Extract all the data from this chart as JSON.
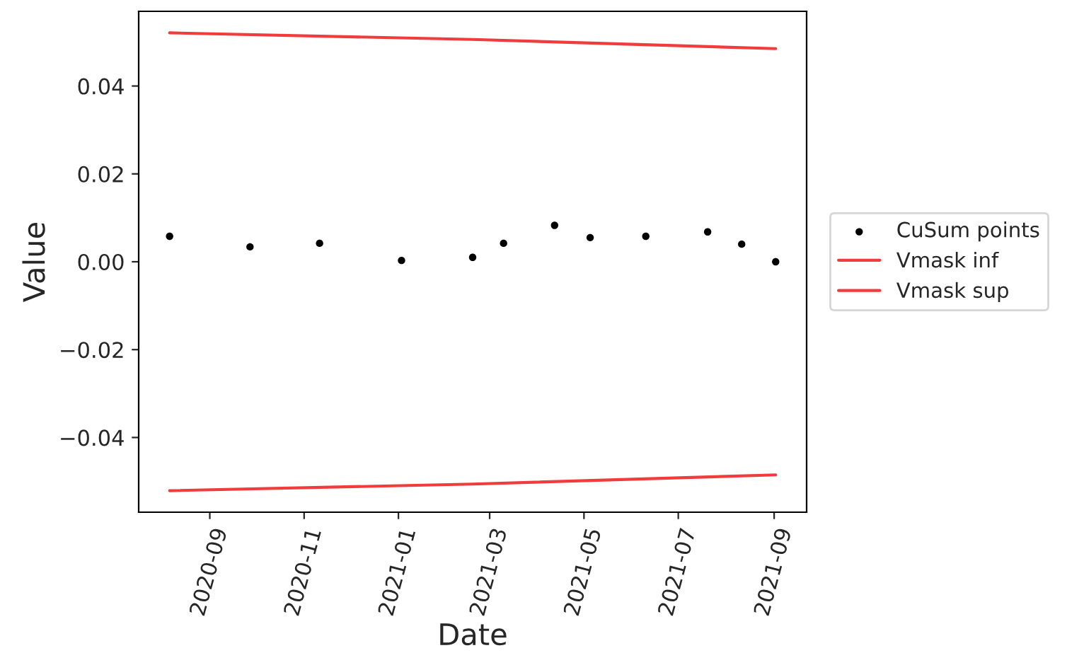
{
  "chart_data": {
    "type": "scatter",
    "xlabel": "Date",
    "ylabel": "Value",
    "xlim": [
      "2020-07-17",
      "2021-09-22"
    ],
    "xticks": [
      {
        "value": "2020-09-01",
        "label": "2020-09"
      },
      {
        "value": "2020-11-01",
        "label": "2020-11"
      },
      {
        "value": "2021-01-01",
        "label": "2021-01"
      },
      {
        "value": "2021-03-01",
        "label": "2021-03"
      },
      {
        "value": "2021-05-01",
        "label": "2021-05"
      },
      {
        "value": "2021-07-01",
        "label": "2021-07"
      },
      {
        "value": "2021-09-01",
        "label": "2021-09"
      }
    ],
    "ylim": [
      -0.057,
      0.057
    ],
    "yticks": [
      {
        "value": -0.04,
        "label": "−0.04"
      },
      {
        "value": -0.02,
        "label": "−0.02"
      },
      {
        "value": 0,
        "label": "0.00"
      },
      {
        "value": 0.02,
        "label": "0.02"
      },
      {
        "value": 0.04,
        "label": "0.04"
      }
    ],
    "legend": "right",
    "grid": false,
    "series": [
      {
        "name": "CuSum points",
        "marker": "circle",
        "color": "#000000",
        "x": [
          "2020-08-06",
          "2020-09-27",
          "2020-11-11",
          "2021-01-03",
          "2021-02-18",
          "2021-03-10",
          "2021-04-12",
          "2021-05-05",
          "2021-06-10",
          "2021-07-20",
          "2021-08-11",
          "2021-09-02"
        ],
        "values": [
          0.0058,
          0.0034,
          0.0042,
          0.0003,
          0.001,
          0.0042,
          0.0083,
          0.0055,
          0.0058,
          0.0068,
          0.004,
          0.0
        ]
      },
      {
        "name": "Vmask inf",
        "type": "line",
        "line_style": "solid",
        "color": "#f03c3c",
        "x": [
          "2020-08-06",
          "2021-02-18",
          "2021-09-02"
        ],
        "values": [
          -0.0521,
          -0.0506,
          -0.0485
        ]
      },
      {
        "name": "Vmask sup",
        "type": "line",
        "line_style": "solid",
        "color": "#f03c3c",
        "x": [
          "2020-08-06",
          "2021-02-18",
          "2021-09-02"
        ],
        "values": [
          0.0521,
          0.0506,
          0.0485
        ]
      }
    ]
  }
}
